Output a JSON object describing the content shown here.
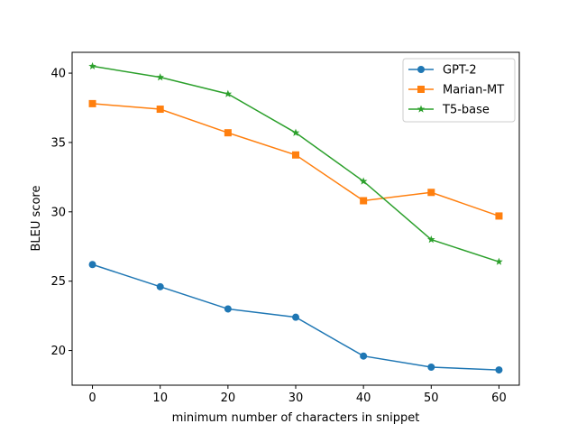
{
  "chart_data": {
    "type": "line",
    "xlabel": "minimum number of characters in snippet",
    "ylabel": "BLEU score",
    "x": [
      0,
      10,
      20,
      30,
      40,
      50,
      60
    ],
    "xlim": [
      -3,
      63
    ],
    "ylim": [
      17.5,
      41.5
    ],
    "xticks": [
      0,
      10,
      20,
      30,
      40,
      50,
      60
    ],
    "yticks": [
      20,
      25,
      30,
      35,
      40
    ],
    "grid": false,
    "legend_position": "upper-right",
    "series": [
      {
        "name": "GPT-2",
        "color": "#1f77b4",
        "marker": "circle",
        "values": [
          26.2,
          24.6,
          23.0,
          22.4,
          19.6,
          18.8,
          18.6
        ]
      },
      {
        "name": "Marian-MT",
        "color": "#ff7f0e",
        "marker": "square",
        "values": [
          37.8,
          37.4,
          35.7,
          34.1,
          30.8,
          31.4,
          29.7
        ]
      },
      {
        "name": "T5-base",
        "color": "#2ca02c",
        "marker": "star",
        "values": [
          40.5,
          39.7,
          38.5,
          35.7,
          32.2,
          28.0,
          26.4
        ]
      }
    ]
  }
}
